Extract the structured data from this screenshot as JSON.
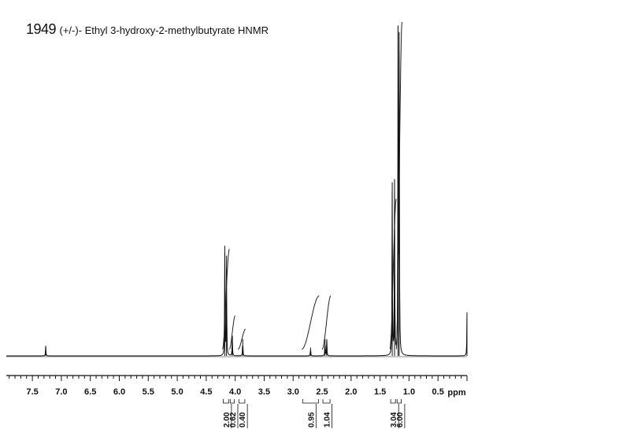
{
  "title": {
    "number": "1949",
    "name": "(+/-)- Ethyl 3-hydroxy-2-methylbutyrate HNMR"
  },
  "chart_data": {
    "type": "line",
    "title": "1949 (+/-)- Ethyl 3-hydroxy-2-methylbutyrate HNMR",
    "xlabel": "ppm",
    "ylabel": "",
    "xlim": [
      7.95,
      0.0
    ],
    "ylim": [
      0,
      1
    ],
    "x_reversed": true,
    "grid": false,
    "x_ticks": [
      {
        "value": 7.5,
        "label": "7.5"
      },
      {
        "value": 7.0,
        "label": "7.0"
      },
      {
        "value": 6.5,
        "label": "6.5"
      },
      {
        "value": 6.0,
        "label": "6.0"
      },
      {
        "value": 5.5,
        "label": "5.5"
      },
      {
        "value": 5.0,
        "label": "5.0"
      },
      {
        "value": 4.5,
        "label": "4.5"
      },
      {
        "value": 4.0,
        "label": "4.0"
      },
      {
        "value": 3.5,
        "label": "3.5"
      },
      {
        "value": 3.0,
        "label": "3.0"
      },
      {
        "value": 2.5,
        "label": "2.5"
      },
      {
        "value": 2.0,
        "label": "2.0"
      },
      {
        "value": 1.5,
        "label": "1.5"
      },
      {
        "value": 1.0,
        "label": "1.0"
      },
      {
        "value": 0.5,
        "label": "0.5"
      }
    ],
    "peaks": [
      {
        "ppm": 7.27,
        "height": 0.03
      },
      {
        "ppm": 4.18,
        "height": 0.33
      },
      {
        "ppm": 4.15,
        "height": 0.3
      },
      {
        "ppm": 4.05,
        "height": 0.06
      },
      {
        "ppm": 3.87,
        "height": 0.05
      },
      {
        "ppm": 2.7,
        "height": 0.025
      },
      {
        "ppm": 2.45,
        "height": 0.05
      },
      {
        "ppm": 2.42,
        "height": 0.05
      },
      {
        "ppm": 1.29,
        "height": 0.52
      },
      {
        "ppm": 1.25,
        "height": 0.52
      },
      {
        "ppm": 1.19,
        "height": 0.99
      },
      {
        "ppm": 1.17,
        "height": 0.97
      },
      {
        "ppm": 0.0,
        "height": 0.13
      }
    ],
    "integrals": [
      {
        "from": 4.22,
        "to": 4.1,
        "rise": 0.3,
        "label": "2.00"
      },
      {
        "from": 4.1,
        "to": 4.0,
        "rise": 0.1,
        "label": "0.62"
      },
      {
        "from": 3.95,
        "to": 3.82,
        "rise": 0.06,
        "label": "0.40"
      },
      {
        "from": 2.85,
        "to": 2.55,
        "rise": 0.16,
        "label": "0.95"
      },
      {
        "from": 2.5,
        "to": 2.35,
        "rise": 0.16,
        "label": "1.04"
      },
      {
        "from": 1.33,
        "to": 1.22,
        "rise": 0.45,
        "label": "3.04"
      },
      {
        "from": 1.22,
        "to": 1.12,
        "rise": 0.98,
        "label": "6.00"
      }
    ]
  }
}
